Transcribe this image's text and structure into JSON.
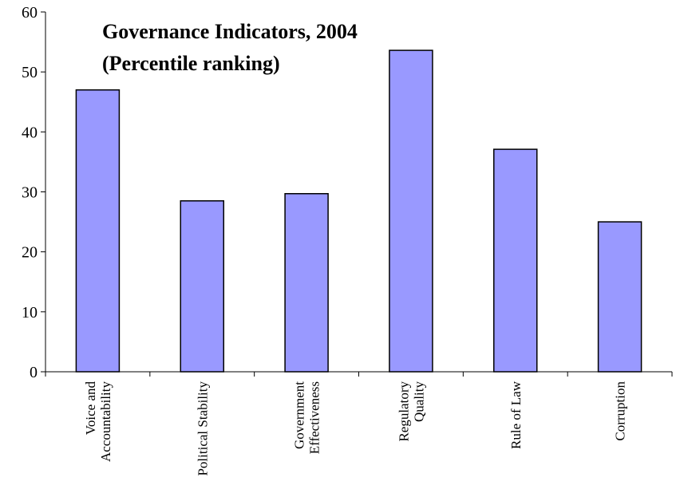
{
  "chart_data": {
    "type": "bar",
    "title": "Governance Indicators, 2004",
    "subtitle": "(Percentile ranking)",
    "categories": [
      [
        "Voice and",
        "Accountability"
      ],
      [
        "Political Stability"
      ],
      [
        "Government",
        "Effectiveness"
      ],
      [
        "Regulatory",
        "Quality"
      ],
      [
        "Rule of Law"
      ],
      [
        "Corruption"
      ]
    ],
    "values": [
      47.0,
      28.5,
      29.7,
      53.6,
      37.1,
      25.0
    ],
    "ylim": [
      0,
      60
    ],
    "yticks": [
      "0",
      "10",
      "20",
      "30",
      "40",
      "50",
      "60"
    ],
    "xlabel": "",
    "ylabel": "",
    "grid": false,
    "legend": "none",
    "colors": {
      "bar_fill": "#9999ff",
      "bar_stroke": "#000000",
      "axis": "#000000"
    }
  }
}
